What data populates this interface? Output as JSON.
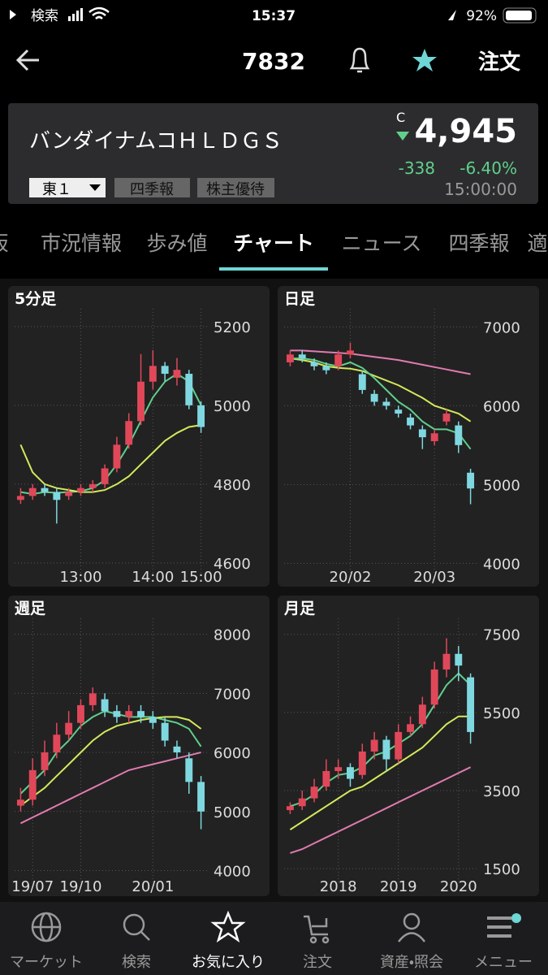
{
  "status_bar": {
    "carrier": "検索",
    "time": "15:37",
    "battery": "92%"
  },
  "header": {
    "title": "7832",
    "order": "注文"
  },
  "quote": {
    "name": "バンダイナムコＨＬＤＧＳ",
    "mark": "C",
    "price": "4,945",
    "change": "-338",
    "change_pct": "-6.40%",
    "time": "15:00:00",
    "market": "東１",
    "tags": [
      "四季報",
      "株主優待"
    ]
  },
  "tabs": [
    "板",
    "市況情報",
    "歩み値",
    "チャート",
    "ニュース",
    "四季報",
    "適"
  ],
  "charts": [
    {
      "title": "5分足",
      "ylim": [
        4575,
        5245
      ],
      "yticks": [
        5200,
        5000,
        4800,
        4600
      ],
      "categories": [
        null,
        null,
        null,
        null,
        null,
        "13:00",
        null,
        null,
        null,
        null,
        null,
        "14:00",
        null,
        null,
        null,
        "15:00"
      ],
      "open": [
        4760,
        4770,
        4790,
        4780,
        4770,
        4780,
        4790,
        4800,
        4840,
        4900,
        4960,
        5060,
        5100,
        5070,
        5080,
        5000
      ],
      "close": [
        4770,
        4790,
        4780,
        4760,
        4780,
        4790,
        4800,
        4840,
        4900,
        4960,
        5060,
        5100,
        5080,
        5090,
        5000,
        4945
      ],
      "high": [
        4790,
        4800,
        4800,
        4790,
        4790,
        4800,
        4810,
        4850,
        4920,
        4980,
        5130,
        5140,
        5110,
        5120,
        5090,
        5010
      ],
      "low": [
        4750,
        4760,
        4770,
        4700,
        4760,
        4770,
        4780,
        4790,
        4830,
        4890,
        4950,
        5040,
        5060,
        5050,
        4990,
        4930
      ],
      "lines": [
        {
          "color": "#5fd08b",
          "values": [
            4780,
            4775,
            4780,
            4778,
            4780,
            4782,
            4790,
            4810,
            4850,
            4900,
            4960,
            5020,
            5060,
            5080,
            5060,
            5000
          ]
        },
        {
          "color": "#d4e85c",
          "values": [
            4900,
            4830,
            4800,
            4790,
            4785,
            4780,
            4780,
            4785,
            4800,
            4820,
            4850,
            4880,
            4910,
            4930,
            4945,
            4950
          ]
        }
      ]
    },
    {
      "title": "日足",
      "ylim": [
        3880,
        7230
      ],
      "yticks": [
        7000,
        6000,
        5000,
        4000
      ],
      "categories": [
        null,
        null,
        null,
        null,
        null,
        "20/02",
        null,
        null,
        null,
        null,
        null,
        null,
        "20/03",
        null,
        null,
        null
      ],
      "open": [
        6550,
        6650,
        6550,
        6500,
        6500,
        6650,
        6400,
        6150,
        6050,
        5950,
        5850,
        5700,
        5550,
        5800,
        5750,
        5150
      ],
      "close": [
        6650,
        6600,
        6500,
        6450,
        6650,
        6700,
        6200,
        6050,
        6000,
        5900,
        5750,
        5600,
        5650,
        5900,
        5500,
        4950
      ],
      "high": [
        6700,
        6700,
        6600,
        6550,
        6700,
        6800,
        6450,
        6200,
        6100,
        6000,
        5900,
        5750,
        5700,
        5950,
        5800,
        5200
      ],
      "low": [
        6500,
        6550,
        6450,
        6400,
        6450,
        6600,
        6150,
        6000,
        5950,
        5850,
        5700,
        5450,
        5500,
        5750,
        5400,
        4750
      ],
      "lines": [
        {
          "color": "#e07bb0",
          "values": [
            6700,
            6700,
            6690,
            6680,
            6670,
            6660,
            6640,
            6620,
            6600,
            6580,
            6550,
            6520,
            6490,
            6460,
            6430,
            6400
          ]
        },
        {
          "color": "#d4e85c",
          "values": [
            6600,
            6580,
            6550,
            6500,
            6480,
            6470,
            6440,
            6380,
            6320,
            6260,
            6180,
            6100,
            6000,
            5950,
            5900,
            5800
          ]
        },
        {
          "color": "#5fd08b",
          "values": [
            6600,
            6600,
            6580,
            6530,
            6500,
            6550,
            6480,
            6350,
            6200,
            6050,
            5950,
            5800,
            5700,
            5700,
            5650,
            5450
          ]
        }
      ]
    },
    {
      "title": "週足",
      "ylim": [
        3800,
        8270
      ],
      "yticks": [
        8000,
        7000,
        6000,
        5000,
        4000
      ],
      "categories": [
        null,
        "19/07",
        null,
        null,
        null,
        "19/10",
        null,
        null,
        null,
        null,
        null,
        "20/01",
        null,
        null,
        null,
        null
      ],
      "open": [
        5100,
        5200,
        5700,
        6000,
        6300,
        6500,
        6800,
        6900,
        6700,
        6600,
        6700,
        6600,
        6500,
        6100,
        5900,
        5500
      ],
      "close": [
        5200,
        5700,
        6000,
        6300,
        6500,
        6800,
        7000,
        6700,
        6600,
        6700,
        6600,
        6500,
        6200,
        6000,
        5500,
        5000
      ],
      "high": [
        5400,
        5900,
        6200,
        6500,
        6700,
        6900,
        7100,
        7000,
        6800,
        6800,
        6800,
        6700,
        6600,
        6200,
        6000,
        5600
      ],
      "low": [
        5000,
        5100,
        5600,
        5900,
        6200,
        6400,
        6700,
        6600,
        6500,
        6500,
        6500,
        6400,
        6100,
        5900,
        5300,
        4700
      ],
      "lines": [
        {
          "color": "#5fd08b",
          "values": [
            5300,
            5500,
            5700,
            6000,
            6200,
            6450,
            6600,
            6700,
            6650,
            6600,
            6600,
            6600,
            6550,
            6500,
            6400,
            6100
          ]
        },
        {
          "color": "#d4e85c",
          "values": [
            5100,
            5250,
            5400,
            5600,
            5800,
            6000,
            6200,
            6350,
            6450,
            6500,
            6550,
            6580,
            6600,
            6600,
            6550,
            6400
          ]
        },
        {
          "color": "#e07bb0",
          "values": [
            4800,
            4900,
            5000,
            5100,
            5200,
            5300,
            5400,
            5500,
            5600,
            5700,
            5750,
            5800,
            5850,
            5900,
            5950,
            6000
          ]
        }
      ]
    },
    {
      "title": "月足",
      "ylim": [
        1150,
        7910
      ],
      "yticks": [
        7500,
        5500,
        3500,
        1500
      ],
      "categories": [
        null,
        null,
        null,
        null,
        "2018",
        null,
        null,
        null,
        null,
        "2019",
        null,
        null,
        null,
        null,
        "2020",
        null
      ],
      "open": [
        3000,
        3100,
        3300,
        3600,
        4000,
        4100,
        3900,
        4500,
        4800,
        4300,
        5000,
        5200,
        5700,
        6600,
        7000,
        6400
      ],
      "close": [
        3100,
        3300,
        3600,
        4000,
        4100,
        3800,
        4500,
        4800,
        4300,
        5000,
        5200,
        5700,
        6600,
        7000,
        6700,
        5000
      ],
      "high": [
        3200,
        3500,
        3800,
        4300,
        4300,
        4200,
        4700,
        5000,
        4900,
        5200,
        5400,
        5900,
        6800,
        7400,
        7200,
        6500
      ],
      "low": [
        2900,
        3000,
        3200,
        3500,
        3800,
        3600,
        3800,
        4300,
        4000,
        4200,
        4900,
        5100,
        5600,
        6400,
        6300,
        4700
      ],
      "lines": [
        {
          "color": "#5fd08b",
          "values": [
            3100,
            3200,
            3400,
            3700,
            3900,
            3950,
            4100,
            4400,
            4500,
            4700,
            4900,
            5200,
            5700,
            6200,
            6500,
            6200
          ]
        },
        {
          "color": "#d4e85c",
          "values": [
            2500,
            2700,
            2900,
            3100,
            3300,
            3500,
            3600,
            3800,
            4000,
            4200,
            4400,
            4600,
            4900,
            5200,
            5400,
            5400
          ]
        },
        {
          "color": "#e07bb0",
          "values": [
            1900,
            2000,
            2150,
            2300,
            2450,
            2600,
            2750,
            2900,
            3050,
            3200,
            3350,
            3500,
            3650,
            3800,
            3950,
            4100
          ]
        }
      ]
    }
  ],
  "nav": [
    "マーケット",
    "検索",
    "お気に入り",
    "注文",
    "資産・照会",
    "メニュー"
  ]
}
